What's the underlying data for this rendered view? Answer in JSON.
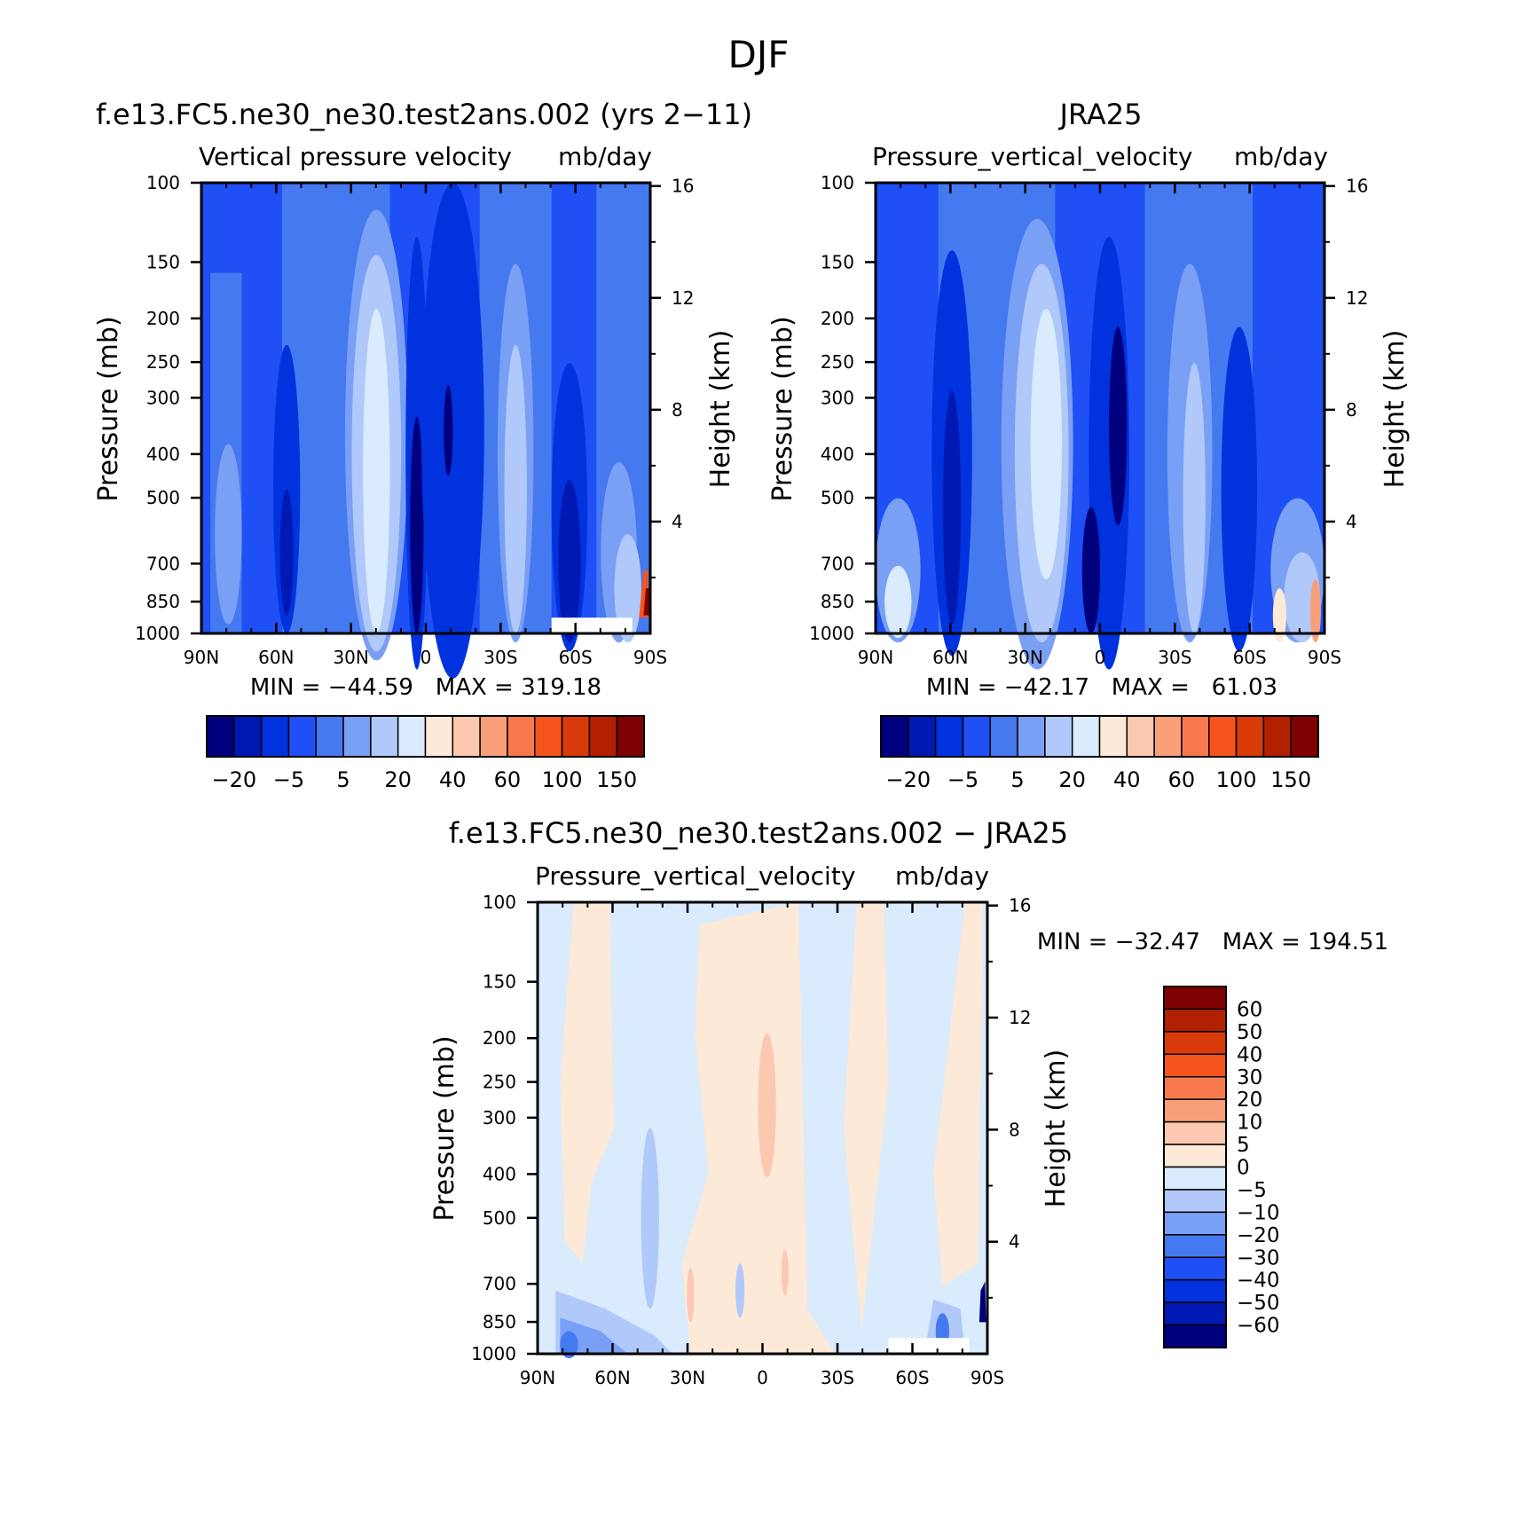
{
  "figure": {
    "title": "DJF"
  },
  "chart_data": [
    {
      "type": "heatmap",
      "title": "f.e13.FC5.ne30_ne30.test2ans.002 (yrs 2−11)",
      "subtitle_left": "Vertical pressure velocity",
      "subtitle_right": "mb/day",
      "ylabel": "Pressure (mb)",
      "y2label": "Height (km)",
      "x_ticks": [
        "90N",
        "60N",
        "30N",
        "0",
        "30S",
        "60S",
        "90S"
      ],
      "y_ticks": [
        "100",
        "150",
        "200",
        "250",
        "300",
        "400",
        "500",
        "700",
        "850",
        "1000"
      ],
      "y2_ticks": [
        "16",
        "12",
        "8",
        "4"
      ],
      "stats": "MIN = −44.59   MAX = 319.18",
      "colorbar_labels": [
        "−20",
        "−5",
        "5",
        "20",
        "40",
        "60",
        "100",
        "150"
      ],
      "colorbar_colors": [
        "#00007f",
        "#0019b2",
        "#0033dd",
        "#1e50f5",
        "#4479f0",
        "#7aa0f5",
        "#b0c9fa",
        "#d9ebfd",
        "#fde9d8",
        "#fcc8b0",
        "#f9a07b",
        "#f7794d",
        "#f5541f",
        "#d93a0a",
        "#b22000",
        "#7f0000"
      ]
    },
    {
      "type": "heatmap",
      "title": "JRA25",
      "subtitle_left": "Pressure_vertical_velocity",
      "subtitle_right": "mb/day",
      "ylabel": "Pressure (mb)",
      "y2label": "Height (km)",
      "x_ticks": [
        "90N",
        "60N",
        "30N",
        "0",
        "30S",
        "60S",
        "90S"
      ],
      "y_ticks": [
        "100",
        "150",
        "200",
        "250",
        "300",
        "400",
        "500",
        "700",
        "850",
        "1000"
      ],
      "y2_ticks": [
        "16",
        "12",
        "8",
        "4"
      ],
      "stats": "MIN = −42.17   MAX =   61.03",
      "colorbar_labels": [
        "−20",
        "−5",
        "5",
        "20",
        "40",
        "60",
        "100",
        "150"
      ],
      "colorbar_colors": [
        "#00007f",
        "#0019b2",
        "#0033dd",
        "#1e50f5",
        "#4479f0",
        "#7aa0f5",
        "#b0c9fa",
        "#d9ebfd",
        "#fde9d8",
        "#fcc8b0",
        "#f9a07b",
        "#f7794d",
        "#f5541f",
        "#d93a0a",
        "#b22000",
        "#7f0000"
      ]
    },
    {
      "type": "heatmap",
      "title": "f.e13.FC5.ne30_ne30.test2ans.002 − JRA25",
      "subtitle_left": "Pressure_vertical_velocity",
      "subtitle_right": "mb/day",
      "ylabel": "Pressure (mb)",
      "y2label": "Height (km)",
      "x_ticks": [
        "90N",
        "60N",
        "30N",
        "0",
        "30S",
        "60S",
        "90S"
      ],
      "y_ticks": [
        "100",
        "150",
        "200",
        "250",
        "300",
        "400",
        "500",
        "700",
        "850",
        "1000"
      ],
      "y2_ticks": [
        "16",
        "12",
        "8",
        "4"
      ],
      "stats": "MIN = −32.47   MAX = 194.51",
      "colorbar_labels": [
        "60",
        "50",
        "40",
        "30",
        "20",
        "10",
        "5",
        "0",
        "−5",
        "−10",
        "−20",
        "−30",
        "−40",
        "−50",
        "−60"
      ],
      "colorbar_colors": [
        "#7f0000",
        "#b22000",
        "#d93a0a",
        "#f5541f",
        "#f7794d",
        "#f9a07b",
        "#fcc8b0",
        "#fde9d8",
        "#d9ebfd",
        "#b0c9fa",
        "#7aa0f5",
        "#4479f0",
        "#1e50f5",
        "#0033dd",
        "#0019b2",
        "#00007f"
      ]
    }
  ]
}
